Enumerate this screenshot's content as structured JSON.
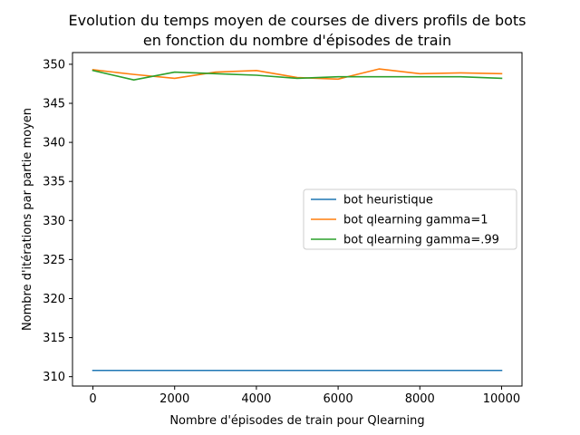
{
  "chart_data": {
    "type": "line",
    "title_line1": "Evolution du temps moyen de courses de divers profils de bots",
    "title_line2": "en fonction du nombre d'épisodes de train",
    "xlabel": "Nombre d'épisodes de train pour Qlearning",
    "ylabel": "Nombre d'itérations par partie moyen",
    "xlim": [
      -500,
      10500
    ],
    "ylim": [
      308.8,
      351.5
    ],
    "xticks": [
      0,
      2000,
      4000,
      6000,
      8000,
      10000
    ],
    "yticks": [
      310,
      315,
      320,
      325,
      330,
      335,
      340,
      345,
      350
    ],
    "legend_position": "center-right",
    "series": [
      {
        "name": "bot heuristique",
        "color": "#1f77b4",
        "x": [
          0,
          1000,
          2000,
          3000,
          4000,
          5000,
          6000,
          7000,
          8000,
          9000,
          10000
        ],
        "y": [
          310.8,
          310.8,
          310.8,
          310.8,
          310.8,
          310.8,
          310.8,
          310.8,
          310.8,
          310.8,
          310.8
        ]
      },
      {
        "name": "bot qlearning gamma=1",
        "color": "#ff7f0e",
        "x": [
          0,
          1000,
          2000,
          3000,
          4000,
          5000,
          6000,
          7000,
          8000,
          9000,
          10000
        ],
        "y": [
          349.3,
          348.7,
          348.2,
          349.0,
          349.2,
          348.3,
          348.1,
          349.4,
          348.8,
          348.9,
          348.8
        ]
      },
      {
        "name": "bot qlearning gamma=.99",
        "color": "#2ca02c",
        "x": [
          0,
          1000,
          2000,
          3000,
          4000,
          5000,
          6000,
          7000,
          8000,
          9000,
          10000
        ],
        "y": [
          349.2,
          348.0,
          349.0,
          348.8,
          348.6,
          348.2,
          348.4,
          348.4,
          348.4,
          348.4,
          348.2
        ]
      }
    ]
  }
}
